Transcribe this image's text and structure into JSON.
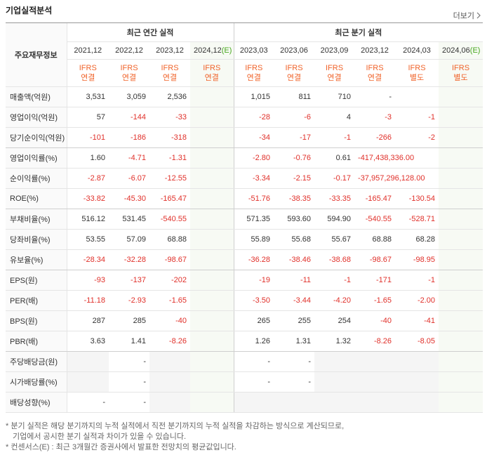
{
  "header": {
    "title": "기업실적분석",
    "more": "더보기"
  },
  "table": {
    "corner": "주요재무정보",
    "groups": [
      {
        "label": "최근 연간 실적",
        "columns": [
          {
            "period": "2021,12",
            "standard": "IFRS",
            "basis": "연결"
          },
          {
            "period": "2022,12",
            "standard": "IFRS",
            "basis": "연결"
          },
          {
            "period": "2023,12",
            "standard": "IFRS",
            "basis": "연결"
          },
          {
            "period": "2024,12",
            "estimate": "(E)",
            "standard": "IFRS",
            "basis": "연결"
          }
        ]
      },
      {
        "label": "최근 분기 실적",
        "columns": [
          {
            "period": "2023,03",
            "standard": "IFRS",
            "basis": "연결"
          },
          {
            "period": "2023,06",
            "standard": "IFRS",
            "basis": "연결"
          },
          {
            "period": "2023,09",
            "standard": "IFRS",
            "basis": "연결"
          },
          {
            "period": "2023,12",
            "standard": "IFRS",
            "basis": "연결"
          },
          {
            "period": "2024,03",
            "standard": "IFRS",
            "basis": "별도"
          },
          {
            "period": "2024,06",
            "estimate": "(E)",
            "standard": "IFRS",
            "basis": "별도"
          }
        ]
      }
    ],
    "rows": [
      {
        "label": "매출액(억원)",
        "values": [
          "3,531",
          "3,059",
          "2,536",
          null,
          "1,015",
          "811",
          "710",
          "-",
          null,
          null
        ]
      },
      {
        "label": "영업이익(억원)",
        "values": [
          "57",
          "-144",
          "-33",
          null,
          "-28",
          "-6",
          "4",
          "-3",
          "-1",
          null
        ]
      },
      {
        "label": "당기순이익(억원)",
        "values": [
          "-101",
          "-186",
          "-318",
          null,
          "-34",
          "-17",
          "-1",
          "-266",
          "-2",
          null
        ]
      },
      {
        "label": "영업이익률(%)",
        "values": [
          "1.60",
          "-4.71",
          "-1.31",
          null,
          "-2.80",
          "-0.76",
          "0.61",
          "-417,438,336.00",
          null,
          null
        ]
      },
      {
        "label": "순이익률(%)",
        "values": [
          "-2.87",
          "-6.07",
          "-12.55",
          null,
          "-3.34",
          "-2.15",
          "-0.17",
          "-37,957,296,128.00",
          null,
          null
        ]
      },
      {
        "label": "ROE(%)",
        "values": [
          "-33.82",
          "-45.30",
          "-165.47",
          null,
          "-51.76",
          "-38.35",
          "-33.35",
          "-165.47",
          "-130.54",
          null
        ]
      },
      {
        "label": "부채비율(%)",
        "values": [
          "516.12",
          "531.45",
          "-540.55",
          null,
          "571.35",
          "593.60",
          "594.90",
          "-540.55",
          "-528.71",
          null
        ]
      },
      {
        "label": "당좌비율(%)",
        "values": [
          "53.55",
          "57.09",
          "68.88",
          null,
          "55.89",
          "55.68",
          "55.67",
          "68.88",
          "68.28",
          null
        ]
      },
      {
        "label": "유보율(%)",
        "values": [
          "-28.34",
          "-32.28",
          "-98.67",
          null,
          "-36.28",
          "-38.46",
          "-38.68",
          "-98.67",
          "-98.95",
          null
        ]
      },
      {
        "label": "EPS(원)",
        "values": [
          "-93",
          "-137",
          "-202",
          null,
          "-19",
          "-11",
          "-1",
          "-171",
          "-1",
          null
        ]
      },
      {
        "label": "PER(배)",
        "values": [
          "-11.18",
          "-2.93",
          "-1.65",
          null,
          "-3.50",
          "-3.44",
          "-4.20",
          "-1.65",
          "-2.00",
          null
        ]
      },
      {
        "label": "BPS(원)",
        "values": [
          "287",
          "285",
          "-40",
          null,
          "265",
          "255",
          "254",
          "-40",
          "-41",
          null
        ]
      },
      {
        "label": "PBR(배)",
        "values": [
          "3.63",
          "1.41",
          "-8.26",
          null,
          "1.26",
          "1.31",
          "1.32",
          "-8.26",
          "-8.05",
          null
        ]
      },
      {
        "label": "주당배당금(원)",
        "values": [
          null,
          "-",
          null,
          null,
          "-",
          "-",
          null,
          null,
          null,
          null
        ]
      },
      {
        "label": "시가배당률(%)",
        "values": [
          null,
          "-",
          null,
          null,
          "-",
          "-",
          null,
          null,
          null,
          null
        ]
      },
      {
        "label": "배당성향(%)",
        "values": [
          "-",
          "-",
          null,
          null,
          null,
          null,
          null,
          null,
          null,
          null
        ]
      }
    ]
  },
  "notes": [
    "* 분기 실적은 해당 분기까지의 누적 실적에서 직전 분기까지의 누적 실적을 차감하는 방식으로 계산되므로,",
    "기업에서 공시한 분기 실적과 차이가 있을 수 있습니다.",
    "* 컨센서스(E) : 최근 3개월간 증권사에서 발표한 전망치의 평균값입니다."
  ]
}
